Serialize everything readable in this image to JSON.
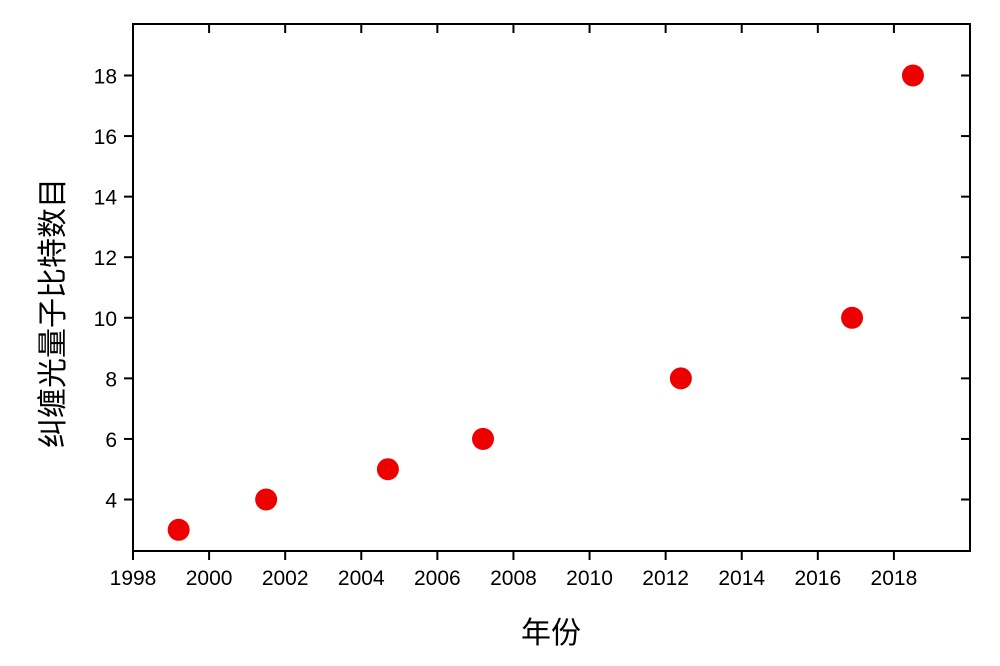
{
  "chart_data": {
    "type": "scatter",
    "title": "",
    "xlabel": "年份",
    "ylabel": "纠缠光量子比特数目",
    "xlim": [
      1998,
      2020
    ],
    "ylim": [
      2.3,
      19.7
    ],
    "xticks": [
      1998,
      2000,
      2002,
      2004,
      2006,
      2008,
      2010,
      2012,
      2014,
      2016,
      2018
    ],
    "yticks": [
      4,
      6,
      8,
      10,
      12,
      14,
      16,
      18
    ],
    "grid": false,
    "legend": "none",
    "marker_color": "#ee0000",
    "points": [
      {
        "x": 1999.2,
        "y": 3
      },
      {
        "x": 2001.5,
        "y": 4
      },
      {
        "x": 2004.7,
        "y": 5
      },
      {
        "x": 2007.2,
        "y": 6
      },
      {
        "x": 2012.4,
        "y": 8
      },
      {
        "x": 2016.9,
        "y": 10
      },
      {
        "x": 2018.5,
        "y": 18
      }
    ]
  }
}
